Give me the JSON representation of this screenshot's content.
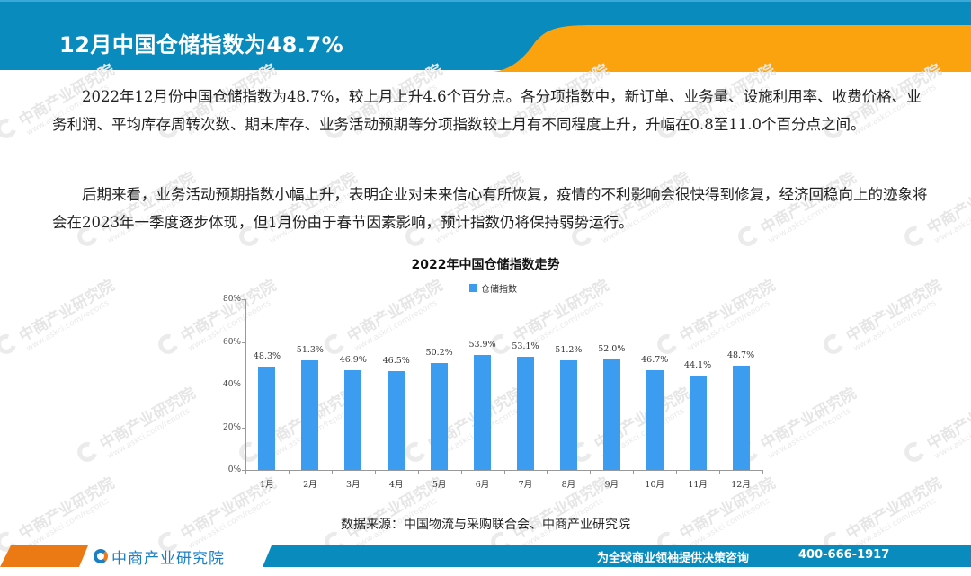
{
  "header": {
    "title": "12月中国仓储指数为48.7%",
    "colors": {
      "blue": "#0a8bbd",
      "orange": "#fba30e"
    }
  },
  "body": {
    "paragraphs": [
      "2022年12月份中国仓储指数为48.7%，较上月上升4.6个百分点。各分项指数中，新订单、业务量、设施利用率、收费价格、业务利润、平均库存周转次数、期末库存、业务活动预期等分项指数较上月有不同程度上升，升幅在0.8至11.0个百分点之间。",
      "后期来看，业务活动预期指数小幅上升，表明企业对未来信心有所恢复，疫情的不利影响会很快得到修复，经济回稳向上的迹象将会在2023年一季度逐步体现，但1月份由于春节因素影响，预计指数仍将保持弱势运行。"
    ],
    "source": "数据来源：中国物流与采购联合会、中商产业研究院"
  },
  "chart_data": {
    "type": "bar",
    "title": "2022年中国仓储指数走势",
    "xlabel": "",
    "ylabel": "",
    "ylim": [
      0,
      80
    ],
    "yticks": [
      "0%",
      "20%",
      "40%",
      "60%",
      "80%"
    ],
    "grid": false,
    "legend_position": "top",
    "categories": [
      "1月",
      "2月",
      "3月",
      "4月",
      "5月",
      "6月",
      "7月",
      "8月",
      "9月",
      "10月",
      "11月",
      "12月"
    ],
    "series": [
      {
        "name": "仓储指数",
        "color": "#3b9cf0",
        "values": [
          48.3,
          51.3,
          46.9,
          46.5,
          50.2,
          53.9,
          53.1,
          51.2,
          52.0,
          46.7,
          44.1,
          48.7
        ],
        "labels": [
          "48.3%",
          "51.3%",
          "46.9%",
          "46.5%",
          "50.2%",
          "53.9%",
          "53.1%",
          "51.2%",
          "52.0%",
          "46.7%",
          "44.1%",
          "48.7%"
        ]
      }
    ]
  },
  "watermark": {
    "text": "中商产业研究院",
    "url": "www.askci.com/reports"
  },
  "footer": {
    "brand": "中商产业研究院",
    "slogan": "为全球商业领袖提供决策咨询",
    "phone": "400-666-1917",
    "colors": {
      "orange": "#ec7a14",
      "blue": "#0a8bbd"
    }
  }
}
